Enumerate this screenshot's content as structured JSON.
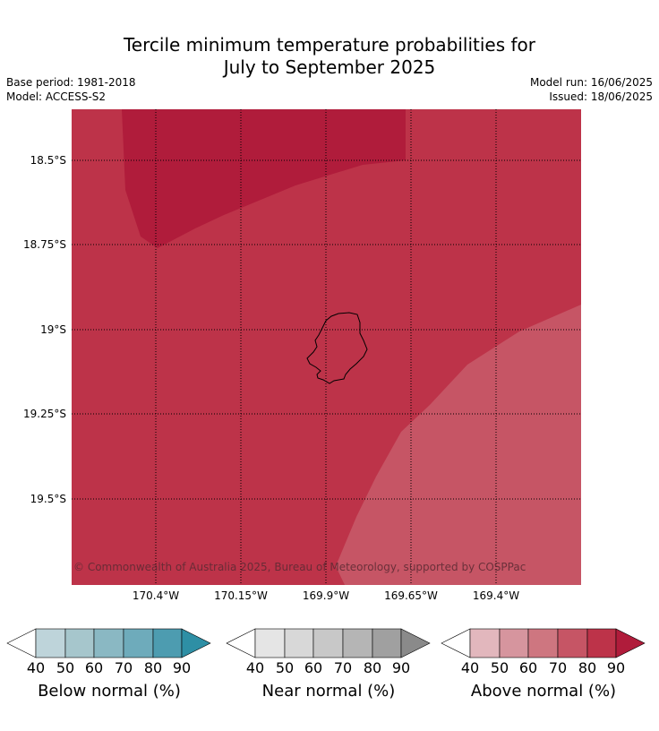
{
  "title_line1": "Tercile minimum temperature probabilities for",
  "title_line2": "July to September 2025",
  "base_period": "Base period: 1981-2018",
  "model": "Model: ACCESS-S2",
  "model_run": "Model run: 16/06/2025",
  "issued": "Issued: 18/06/2025",
  "copyright": "© Commonwealth of Australia 2025, Bureau of Meteorology, supported by COSPPac",
  "lat_labels": [
    "18.5°S",
    "18.75°S",
    "19°S",
    "19.25°S",
    "19.5°S"
  ],
  "lon_labels": [
    "170.4°W",
    "170.15°W",
    "169.9°W",
    "169.65°W",
    "169.4°W"
  ],
  "colors": {
    "above_80": "#bd3349",
    "above_90": "#b01c3b",
    "above_70": "#c65565",
    "island_outline": "#000000"
  },
  "colorbars": [
    {
      "label": "Below normal (%)",
      "ticks": [
        "40",
        "50",
        "60",
        "70",
        "80",
        "90"
      ],
      "colors": [
        "#ffffff",
        "#bed4da",
        "#a6c6cc",
        "#8ab8c3",
        "#6eabbb",
        "#4d9cb0",
        "#2e8fa5"
      ]
    },
    {
      "label": "Near normal (%)",
      "ticks": [
        "40",
        "50",
        "60",
        "70",
        "80",
        "90"
      ],
      "colors": [
        "#ffffff",
        "#e5e5e5",
        "#d8d8d8",
        "#c8c8c8",
        "#b5b5b5",
        "#a0a0a0",
        "#8a8a8a"
      ]
    },
    {
      "label": "Above normal (%)",
      "ticks": [
        "40",
        "50",
        "60",
        "70",
        "80",
        "90"
      ],
      "colors": [
        "#ffffff",
        "#e2b7bd",
        "#d6959e",
        "#ce7680",
        "#c65565",
        "#bd3349",
        "#b01c3b"
      ]
    }
  ]
}
